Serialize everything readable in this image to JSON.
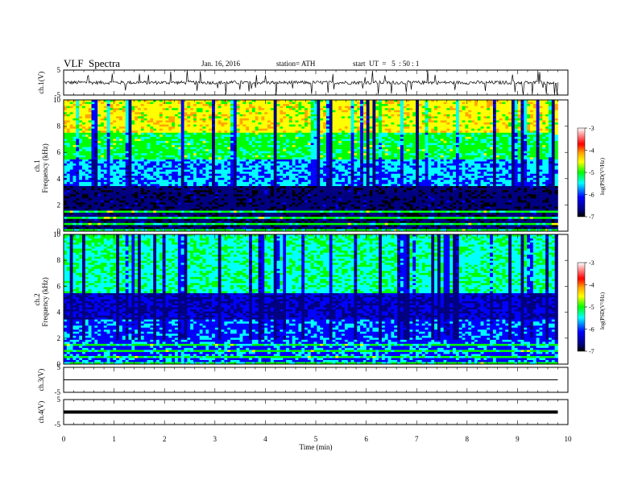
{
  "header": {
    "title": "VLF  Spectra",
    "date": "Jan. 16, 2016",
    "station": "station= ATH",
    "start": "start  UT  =   5  : 50 : 1"
  },
  "colors": {
    "colormap": [
      "#ffffff",
      "#ff0000",
      "#ffa500",
      "#ffff00",
      "#00ff00",
      "#00ffff",
      "#0000ff",
      "#000080",
      "#000000"
    ]
  },
  "chart_data": [
    {
      "type": "line",
      "name": "ch1-waveform",
      "ylabel": "ch.1(V)",
      "ylim": [
        -5,
        5
      ],
      "yticks": [
        "5",
        "-5"
      ],
      "xlim": [
        0,
        10
      ],
      "x_end": 9.8,
      "description_values": {
        "baseline": 0,
        "spike_max": 5,
        "spike_min": -5
      }
    },
    {
      "type": "heatmap",
      "name": "ch1-spectrogram",
      "ylabel": "ch.1\nFrequency  (kHz)",
      "ylabel_line1": "ch.1",
      "ylabel_line2": "Frequency  (kHz)",
      "ylim": [
        0,
        10
      ],
      "yticks": [
        "0",
        "2",
        "4",
        "6",
        "8",
        "10"
      ],
      "xlim": [
        0,
        10
      ],
      "x_end": 9.8,
      "colorbar": {
        "label": "log(PSD(V²/Hz)",
        "ticks": [
          "-3",
          "-4",
          "-5",
          "-6",
          "-7"
        ],
        "range": [
          -7,
          -3
        ]
      }
    },
    {
      "type": "heatmap",
      "name": "ch2-spectrogram",
      "ylabel_line1": "ch.2",
      "ylabel_line2": "Frequency  (kHz)",
      "ylim": [
        0,
        10
      ],
      "yticks": [
        "0",
        "2",
        "4",
        "6",
        "8",
        "10"
      ],
      "xlim": [
        0,
        10
      ],
      "x_end": 9.8,
      "colorbar": {
        "label": "log(PSD(V²/Hz)",
        "ticks": [
          "-3",
          "-4",
          "-5",
          "-6",
          "-7"
        ],
        "range": [
          -7,
          -3
        ]
      }
    },
    {
      "type": "line",
      "name": "ch3-waveform",
      "ylabel": "ch.3(V)",
      "ylim": [
        -5,
        5
      ],
      "yticks": [
        "5",
        "-5"
      ],
      "xlim": [
        0,
        10
      ],
      "x_end": 9.8,
      "level": 0
    },
    {
      "type": "line",
      "name": "ch4-waveform",
      "ylabel": "ch.4(V)",
      "ylim": [
        -5,
        5
      ],
      "yticks": [
        "5",
        "-5"
      ],
      "xlim": [
        0,
        10
      ],
      "x_end": 9.8,
      "level": 0
    }
  ],
  "xaxis": {
    "label": "Time  (min)",
    "ticks": [
      "0",
      "1",
      "2",
      "3",
      "4",
      "5",
      "6",
      "7",
      "8",
      "9",
      "10"
    ]
  }
}
